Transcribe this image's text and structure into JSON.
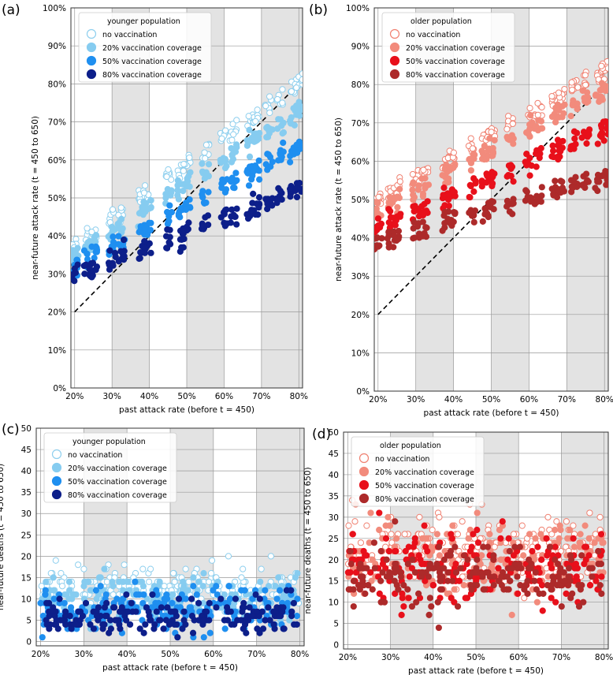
{
  "chart_data": [
    {
      "panel": "(a)",
      "type": "scatter",
      "xlabel": "past attack rate (before t = 450)",
      "ylabel": "near-future attack rate (t = 450 to 650)",
      "xlim": [
        0.19,
        0.81
      ],
      "ylim": [
        0,
        1.0
      ],
      "xticks": [
        "20%",
        "30%",
        "40%",
        "50%",
        "60%",
        "70%",
        "80%"
      ],
      "yticks": [
        "0%",
        "10%",
        "20%",
        "30%",
        "40%",
        "50%",
        "60%",
        "70%",
        "80%",
        "90%",
        "100%"
      ],
      "shaded_bands": [
        [
          0.3,
          0.4
        ],
        [
          0.5,
          0.6
        ],
        [
          0.7,
          0.81
        ]
      ],
      "diagonal": true,
      "legend_title": "younger population",
      "legend_position": "top-left",
      "series": [
        {
          "name": "no vaccination",
          "color": "#ffffff",
          "edge": "#8ecfee",
          "a": 0.37,
          "b": 0.72,
          "spread": 0.01
        },
        {
          "name": "20% vaccination coverage",
          "color": "#86ccf0",
          "edge": "#86ccf0",
          "a": 0.35,
          "b": 0.63,
          "spread": 0.01
        },
        {
          "name": "50% vaccination coverage",
          "color": "#1f8ff0",
          "edge": "#1f8ff0",
          "a": 0.32,
          "b": 0.52,
          "spread": 0.01
        },
        {
          "name": "80% vaccination coverage",
          "color": "#0d1f8a",
          "edge": "#0d1f8a",
          "a": 0.3,
          "b": 0.36,
          "spread": 0.012
        }
      ]
    },
    {
      "panel": "(b)",
      "type": "scatter",
      "xlabel": "past attack rate (before t = 450)",
      "ylabel": "near-future attack rate (t = 450 to 650)",
      "xlim": [
        0.19,
        0.81
      ],
      "ylim": [
        0,
        1.0
      ],
      "xticks": [
        "20%",
        "30%",
        "40%",
        "50%",
        "60%",
        "70%",
        "80%"
      ],
      "yticks": [
        "0%",
        "10%",
        "20%",
        "30%",
        "40%",
        "50%",
        "60%",
        "70%",
        "80%",
        "90%",
        "100%"
      ],
      "shaded_bands": [
        [
          0.3,
          0.4
        ],
        [
          0.5,
          0.6
        ],
        [
          0.7,
          0.81
        ]
      ],
      "diagonal": true,
      "legend_title": "older population",
      "legend_position": "top-left",
      "series": [
        {
          "name": "no vaccination",
          "color": "#ffffff",
          "edge": "#f08070",
          "a": 0.5,
          "b": 0.56,
          "spread": 0.01
        },
        {
          "name": "20% vaccination coverage",
          "color": "#f28b7c",
          "edge": "#f28b7c",
          "a": 0.47,
          "b": 0.53,
          "spread": 0.01
        },
        {
          "name": "50% vaccination coverage",
          "color": "#e8101b",
          "edge": "#e8101b",
          "a": 0.43,
          "b": 0.42,
          "spread": 0.01
        },
        {
          "name": "80% vaccination coverage",
          "color": "#ad2a2a",
          "edge": "#ad2a2a",
          "a": 0.39,
          "b": 0.28,
          "spread": 0.01
        }
      ]
    },
    {
      "panel": "(c)",
      "type": "scatter",
      "xlabel": "past attack rate (before t = 450)",
      "ylabel": "near-future deaths (t = 450 to 650)",
      "xlim": [
        0.19,
        0.81
      ],
      "ylim": [
        -1,
        50
      ],
      "xticks": [
        "20%",
        "30%",
        "40%",
        "50%",
        "60%",
        "70%",
        "80%"
      ],
      "yticks": [
        "0",
        "5",
        "10",
        "15",
        "20",
        "25",
        "30",
        "35",
        "40",
        "45",
        "50"
      ],
      "shaded_bands": [
        [
          0.3,
          0.4
        ],
        [
          0.5,
          0.6
        ],
        [
          0.7,
          0.81
        ]
      ],
      "diagonal": false,
      "legend_title": "younger population",
      "legend_position": "top-left",
      "series": [
        {
          "name": "no vaccination",
          "color": "#ffffff",
          "edge": "#8ecfee",
          "mean": 12.5,
          "sd": 2.5
        },
        {
          "name": "20% vaccination coverage",
          "color": "#86ccf0",
          "edge": "#86ccf0",
          "mean": 10,
          "sd": 2.5
        },
        {
          "name": "50% vaccination coverage",
          "color": "#1f8ff0",
          "edge": "#1f8ff0",
          "mean": 7.5,
          "sd": 2.5
        },
        {
          "name": "80% vaccination coverage",
          "color": "#0d1f8a",
          "edge": "#0d1f8a",
          "mean": 6,
          "sd": 2.2
        }
      ]
    },
    {
      "panel": "(d)",
      "type": "scatter",
      "xlabel": "past attack rate (before t = 450)",
      "ylabel": "near-future deaths (t = 450 to 650)",
      "xlim": [
        0.19,
        0.81
      ],
      "ylim": [
        -1,
        50
      ],
      "xticks": [
        "20%",
        "30%",
        "40%",
        "50%",
        "60%",
        "70%",
        "80%"
      ],
      "yticks": [
        "0",
        "5",
        "10",
        "15",
        "20",
        "25",
        "30",
        "35",
        "40",
        "45",
        "50"
      ],
      "shaded_bands": [
        [
          0.3,
          0.4
        ],
        [
          0.5,
          0.6
        ],
        [
          0.7,
          0.81
        ]
      ],
      "diagonal": false,
      "legend_title": "older population",
      "legend_position": "top-left",
      "series": [
        {
          "name": "no vaccination",
          "color": "#ffffff",
          "edge": "#f08070",
          "mean": 23,
          "sd": 4.5
        },
        {
          "name": "20% vaccination coverage",
          "color": "#f28b7c",
          "edge": "#f28b7c",
          "mean": 20,
          "sd": 4.5
        },
        {
          "name": "50% vaccination coverage",
          "color": "#e8101b",
          "edge": "#e8101b",
          "mean": 18,
          "sd": 4.0
        },
        {
          "name": "80% vaccination coverage",
          "color": "#ad2a2a",
          "edge": "#ad2a2a",
          "mean": 16,
          "sd": 3.5
        }
      ]
    }
  ]
}
